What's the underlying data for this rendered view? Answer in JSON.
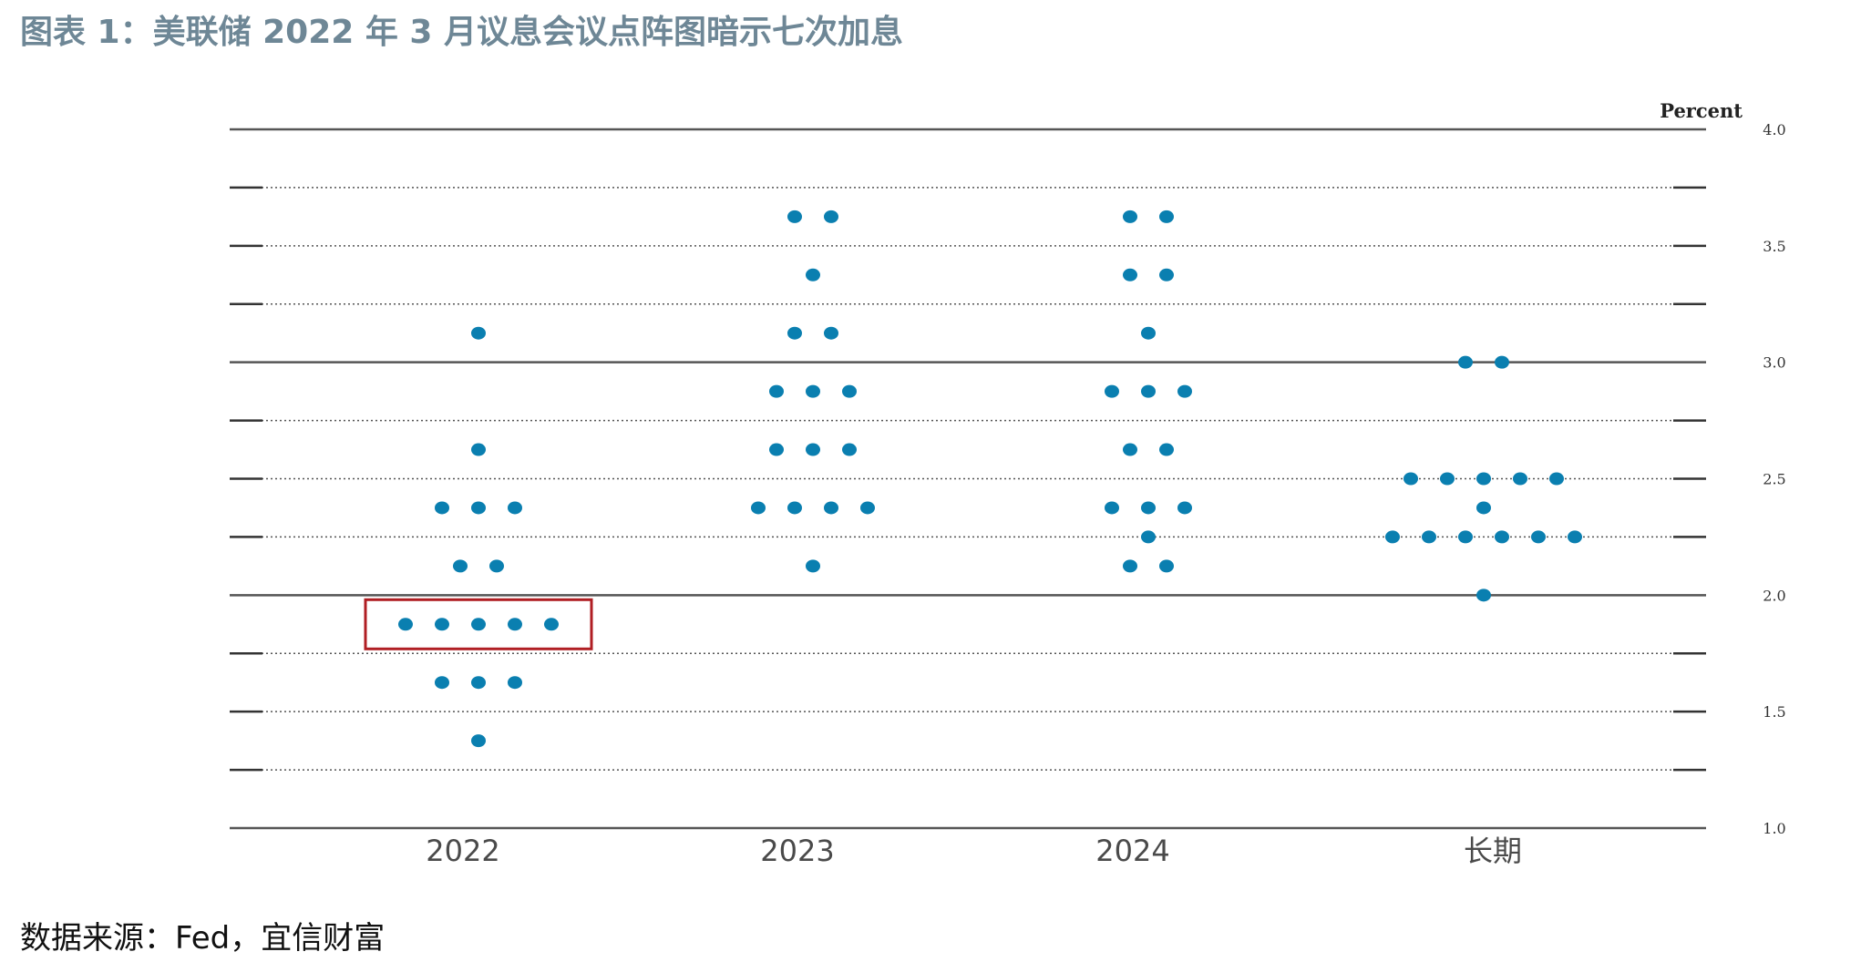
{
  "title": "图表 1：美联储 2022 年 3 月议息会议点阵图暗示七次加息",
  "source": "数据来源：Fed，宜信财富",
  "colors": {
    "dot": "#0a7fb0",
    "highlight": "#b01e23",
    "title": "#6e8796"
  },
  "chart_data": {
    "type": "scatter",
    "title": "",
    "unit_label": "Percent",
    "categories": [
      "2022",
      "2023",
      "2024",
      "长期"
    ],
    "ylim": [
      1.0,
      4.0
    ],
    "yticks": [
      1.0,
      1.5,
      2.0,
      2.5,
      3.0,
      3.5,
      4.0
    ],
    "ytick_labels": [
      "1.0",
      "1.5",
      "2.0",
      "2.5",
      "3.0",
      "3.5",
      "4.0"
    ],
    "grid": "horizontal dotted every 0.25, solid at whole percents",
    "series": [
      {
        "category": "2022",
        "points": [
          {
            "y": 3.125,
            "count": 1
          },
          {
            "y": 2.625,
            "count": 1
          },
          {
            "y": 2.375,
            "count": 3
          },
          {
            "y": 2.125,
            "count": 2
          },
          {
            "y": 1.875,
            "count": 5
          },
          {
            "y": 1.625,
            "count": 3
          },
          {
            "y": 1.375,
            "count": 1
          }
        ]
      },
      {
        "category": "2023",
        "points": [
          {
            "y": 3.625,
            "count": 2
          },
          {
            "y": 3.375,
            "count": 1
          },
          {
            "y": 3.125,
            "count": 2
          },
          {
            "y": 2.875,
            "count": 3
          },
          {
            "y": 2.625,
            "count": 3
          },
          {
            "y": 2.375,
            "count": 4
          },
          {
            "y": 2.125,
            "count": 1
          }
        ]
      },
      {
        "category": "2024",
        "points": [
          {
            "y": 3.625,
            "count": 2
          },
          {
            "y": 3.375,
            "count": 2
          },
          {
            "y": 3.125,
            "count": 1
          },
          {
            "y": 2.875,
            "count": 3
          },
          {
            "y": 2.625,
            "count": 2
          },
          {
            "y": 2.375,
            "count": 3
          },
          {
            "y": 2.25,
            "count": 1
          },
          {
            "y": 2.125,
            "count": 2
          }
        ]
      },
      {
        "category": "长期",
        "points": [
          {
            "y": 3.0,
            "count": 2
          },
          {
            "y": 2.5,
            "count": 5
          },
          {
            "y": 2.375,
            "count": 1
          },
          {
            "y": 2.25,
            "count": 6
          },
          {
            "y": 2.0,
            "count": 1
          }
        ]
      }
    ],
    "highlight": {
      "category": "2022",
      "y": 1.875
    }
  }
}
